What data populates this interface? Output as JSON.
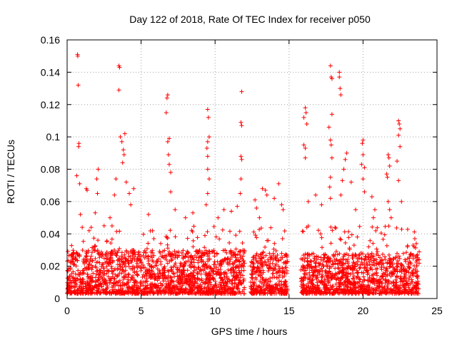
{
  "chart_data": {
    "type": "scatter",
    "title": "Day 122 of 2018, Rate Of TEC Index for receiver p050",
    "xlabel": "GPS time / hours",
    "ylabel": "ROTI / TECUs",
    "xlim": [
      0,
      25
    ],
    "ylim": [
      0,
      0.16
    ],
    "xticks": [
      0,
      5,
      10,
      15,
      20,
      25
    ],
    "yticks": [
      0,
      0.02,
      0.04,
      0.06,
      0.08,
      0.1,
      0.12,
      0.14,
      0.16
    ],
    "xtick_labels": [
      "0",
      "5",
      "10",
      "15",
      "20",
      "25"
    ],
    "ytick_labels": [
      "0",
      "0.02",
      "0.04",
      "0.06",
      "0.08",
      "0.1",
      "0.12",
      "0.14",
      "0.16"
    ],
    "grid": true,
    "marker": "+",
    "color": "#ff0000",
    "data_gaps_hours": [
      [
        12.0,
        12.4
      ],
      [
        14.9,
        15.8
      ]
    ],
    "series": [
      {
        "name": "ROTI",
        "points": [
          [
            0.7,
            0.151
          ],
          [
            0.72,
            0.15
          ],
          [
            0.75,
            0.132
          ],
          [
            0.8,
            0.096
          ],
          [
            0.78,
            0.094
          ],
          [
            0.65,
            0.076
          ],
          [
            0.85,
            0.071
          ],
          [
            1.3,
            0.068
          ],
          [
            1.35,
            0.067
          ],
          [
            0.9,
            0.052
          ],
          [
            2.1,
            0.08
          ],
          [
            2.0,
            0.074
          ],
          [
            2.05,
            0.065
          ],
          [
            1.9,
            0.053
          ],
          [
            2.5,
            0.045
          ],
          [
            2.9,
            0.05
          ],
          [
            3.2,
            0.064
          ],
          [
            3.3,
            0.074
          ],
          [
            3.5,
            0.144
          ],
          [
            3.55,
            0.143
          ],
          [
            3.5,
            0.129
          ],
          [
            3.6,
            0.1
          ],
          [
            3.7,
            0.097
          ],
          [
            3.8,
            0.092
          ],
          [
            3.9,
            0.102
          ],
          [
            3.85,
            0.089
          ],
          [
            3.75,
            0.084
          ],
          [
            4.0,
            0.072
          ],
          [
            4.2,
            0.065
          ],
          [
            4.5,
            0.068
          ],
          [
            4.3,
            0.058
          ],
          [
            5.5,
            0.052
          ],
          [
            6.8,
            0.126
          ],
          [
            6.75,
            0.124
          ],
          [
            6.7,
            0.115
          ],
          [
            6.9,
            0.099
          ],
          [
            6.8,
            0.097
          ],
          [
            6.85,
            0.089
          ],
          [
            6.9,
            0.083
          ],
          [
            7.0,
            0.078
          ],
          [
            7.0,
            0.066
          ],
          [
            7.3,
            0.055
          ],
          [
            8.0,
            0.05
          ],
          [
            8.5,
            0.053
          ],
          [
            9.5,
            0.117
          ],
          [
            9.55,
            0.112
          ],
          [
            9.6,
            0.1
          ],
          [
            9.5,
            0.097
          ],
          [
            9.45,
            0.093
          ],
          [
            9.5,
            0.088
          ],
          [
            9.5,
            0.08
          ],
          [
            9.6,
            0.074
          ],
          [
            9.5,
            0.065
          ],
          [
            9.4,
            0.058
          ],
          [
            10.2,
            0.05
          ],
          [
            10.6,
            0.055
          ],
          [
            11.1,
            0.054
          ],
          [
            11.8,
            0.128
          ],
          [
            11.75,
            0.109
          ],
          [
            11.8,
            0.107
          ],
          [
            11.75,
            0.088
          ],
          [
            11.8,
            0.086
          ],
          [
            11.75,
            0.074
          ],
          [
            11.7,
            0.065
          ],
          [
            11.5,
            0.057
          ],
          [
            12.7,
            0.061
          ],
          [
            12.8,
            0.056
          ],
          [
            13.2,
            0.068
          ],
          [
            13.4,
            0.067
          ],
          [
            13.5,
            0.064
          ],
          [
            13.0,
            0.05
          ],
          [
            14.0,
            0.062
          ],
          [
            14.3,
            0.071
          ],
          [
            14.5,
            0.058
          ],
          [
            14.6,
            0.055
          ],
          [
            16.1,
            0.118
          ],
          [
            16.15,
            0.115
          ],
          [
            16.0,
            0.112
          ],
          [
            16.2,
            0.108
          ],
          [
            16.0,
            0.095
          ],
          [
            16.1,
            0.093
          ],
          [
            16.1,
            0.087
          ],
          [
            16.3,
            0.06
          ],
          [
            16.2,
            0.044
          ],
          [
            16.8,
            0.064
          ],
          [
            17.2,
            0.058
          ],
          [
            17.8,
            0.144
          ],
          [
            17.85,
            0.137
          ],
          [
            17.9,
            0.136
          ],
          [
            17.9,
            0.114
          ],
          [
            17.7,
            0.106
          ],
          [
            17.8,
            0.098
          ],
          [
            17.85,
            0.095
          ],
          [
            17.9,
            0.087
          ],
          [
            17.8,
            0.075
          ],
          [
            17.75,
            0.069
          ],
          [
            17.8,
            0.062
          ],
          [
            18.4,
            0.14
          ],
          [
            18.4,
            0.137
          ],
          [
            18.45,
            0.13
          ],
          [
            18.5,
            0.126
          ],
          [
            18.9,
            0.09
          ],
          [
            18.8,
            0.086
          ],
          [
            18.7,
            0.08
          ],
          [
            18.6,
            0.073
          ],
          [
            18.5,
            0.064
          ],
          [
            19.2,
            0.072
          ],
          [
            19.5,
            0.055
          ],
          [
            20.0,
            0.098
          ],
          [
            19.95,
            0.096
          ],
          [
            20.0,
            0.089
          ],
          [
            19.9,
            0.083
          ],
          [
            20.1,
            0.081
          ],
          [
            20.0,
            0.074
          ],
          [
            20.1,
            0.066
          ],
          [
            20.6,
            0.063
          ],
          [
            20.8,
            0.055
          ],
          [
            20.7,
            0.05
          ],
          [
            21.7,
            0.089
          ],
          [
            21.75,
            0.087
          ],
          [
            21.8,
            0.082
          ],
          [
            21.6,
            0.077
          ],
          [
            21.65,
            0.075
          ],
          [
            21.7,
            0.06
          ],
          [
            21.8,
            0.055
          ],
          [
            21.9,
            0.05
          ],
          [
            22.4,
            0.11
          ],
          [
            22.45,
            0.108
          ],
          [
            22.5,
            0.105
          ],
          [
            22.4,
            0.101
          ],
          [
            22.5,
            0.094
          ],
          [
            22.3,
            0.085
          ],
          [
            22.4,
            0.073
          ],
          [
            22.6,
            0.06
          ],
          [
            23.0,
            0.032
          ],
          [
            23.5,
            0.037
          ],
          [
            23.6,
            0.034
          ]
        ]
      }
    ],
    "dense_band_segments": [
      {
        "x_start": 0.0,
        "x_end": 12.0,
        "y_min": 0.003,
        "y_max": 0.03,
        "typical_peak": 0.045
      },
      {
        "x_start": 12.4,
        "x_end": 14.9,
        "y_min": 0.003,
        "y_max": 0.028,
        "typical_peak": 0.045
      },
      {
        "x_start": 15.8,
        "x_end": 23.8,
        "y_min": 0.003,
        "y_max": 0.028,
        "typical_peak": 0.045
      }
    ]
  }
}
